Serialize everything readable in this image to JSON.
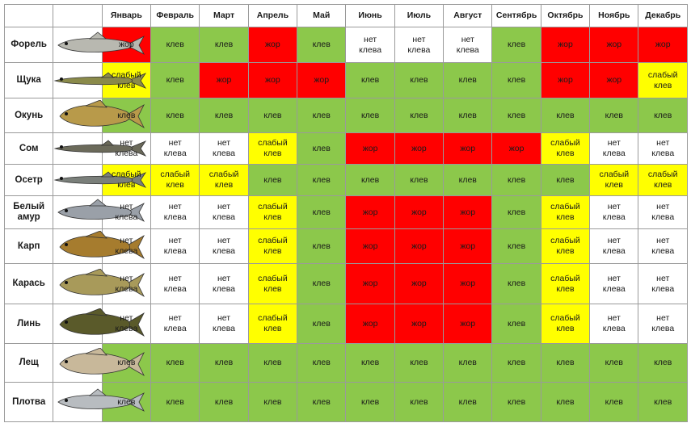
{
  "months": [
    "Январь",
    "Февраль",
    "Март",
    "Апрель",
    "Май",
    "Июнь",
    "Июль",
    "Август",
    "Сентябрь",
    "Октябрь",
    "Ноябрь",
    "Декабрь"
  ],
  "legend": {
    "bite": {
      "label": "клев",
      "color": "#8cc84b"
    },
    "none": {
      "label": "нет\nклева",
      "color": "#ffffff"
    },
    "weak": {
      "label": "слабый\nклев",
      "color": "#ffff00"
    },
    "feed": {
      "label": "жор",
      "color": "#ff0000"
    }
  },
  "fish": [
    {
      "name": "Форель",
      "icon": "trout-icon",
      "body_color": "#b8b8b0",
      "months": [
        "feed",
        "bite",
        "bite",
        "feed",
        "bite",
        "none",
        "none",
        "none",
        "bite",
        "feed",
        "feed",
        "feed"
      ]
    },
    {
      "name": "Щука",
      "icon": "pike-icon",
      "body_color": "#8a8a4a",
      "months": [
        "weak",
        "bite",
        "feed",
        "feed",
        "feed",
        "bite",
        "bite",
        "bite",
        "bite",
        "feed",
        "feed",
        "weak"
      ]
    },
    {
      "name": "Окунь",
      "icon": "perch-icon",
      "body_color": "#b89a4a",
      "months": [
        "bite",
        "bite",
        "bite",
        "bite",
        "bite",
        "bite",
        "bite",
        "bite",
        "bite",
        "bite",
        "bite",
        "bite"
      ]
    },
    {
      "name": "Сом",
      "icon": "catfish-icon",
      "body_color": "#6b6a5a",
      "months": [
        "none",
        "none",
        "none",
        "weak",
        "bite",
        "feed",
        "feed",
        "feed",
        "feed",
        "weak",
        "none",
        "none"
      ]
    },
    {
      "name": "Осетр",
      "icon": "sturgeon-icon",
      "body_color": "#7a7f7a",
      "months": [
        "weak",
        "weak",
        "weak",
        "bite",
        "bite",
        "bite",
        "bite",
        "bite",
        "bite",
        "bite",
        "weak",
        "weak"
      ]
    },
    {
      "name": "Белый амур",
      "icon": "grass-carp-icon",
      "body_color": "#9aa0a8",
      "months": [
        "none",
        "none",
        "none",
        "weak",
        "bite",
        "feed",
        "feed",
        "feed",
        "bite",
        "weak",
        "none",
        "none"
      ]
    },
    {
      "name": "Карп",
      "icon": "carp-icon",
      "body_color": "#a67c2e",
      "months": [
        "none",
        "none",
        "none",
        "weak",
        "bite",
        "feed",
        "feed",
        "feed",
        "bite",
        "weak",
        "none",
        "none"
      ]
    },
    {
      "name": "Карась",
      "icon": "crucian-icon",
      "body_color": "#a89a5a",
      "months": [
        "none",
        "none",
        "none",
        "weak",
        "bite",
        "feed",
        "feed",
        "feed",
        "bite",
        "weak",
        "none",
        "none"
      ]
    },
    {
      "name": "Линь",
      "icon": "tench-icon",
      "body_color": "#5a5a2a",
      "months": [
        "none",
        "none",
        "none",
        "weak",
        "bite",
        "feed",
        "feed",
        "feed",
        "bite",
        "weak",
        "none",
        "none"
      ]
    },
    {
      "name": "Лещ",
      "icon": "bream-icon",
      "body_color": "#c8b89a",
      "months": [
        "bite",
        "bite",
        "bite",
        "bite",
        "bite",
        "bite",
        "bite",
        "bite",
        "bite",
        "bite",
        "bite",
        "bite"
      ]
    },
    {
      "name": "Плотва",
      "icon": "roach-icon",
      "body_color": "#b8bcc0",
      "months": [
        "bite",
        "bite",
        "bite",
        "bite",
        "bite",
        "bite",
        "bite",
        "bite",
        "bite",
        "bite",
        "bite",
        "bite"
      ]
    }
  ]
}
